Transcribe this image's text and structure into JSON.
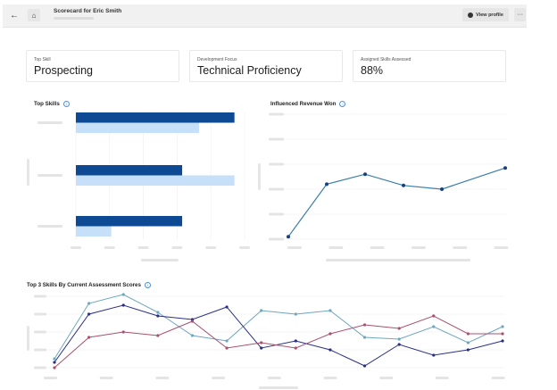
{
  "header": {
    "back_icon": "arrow-left-icon",
    "home_icon": "home-icon",
    "title": "Scorecard for Eric Smith",
    "view_profile_label": "View profile",
    "view_profile_icon": "user-circle-icon",
    "more_label": "···"
  },
  "cards": [
    {
      "label": "Top Skill",
      "value": "Prospecting"
    },
    {
      "label": "Development Focus",
      "value": "Technical Proficiency"
    },
    {
      "label": "Assigned Skills Assessed",
      "value": "88%"
    }
  ],
  "info_icon": "i",
  "colors": {
    "dark_bar": "#0e4a94",
    "light_bar": "#c7e0fa",
    "revenue_line": "#3a7fa6",
    "series": [
      "#6ea6c0",
      "#2a2f86",
      "#a8506e"
    ]
  },
  "chart_data": [
    {
      "type": "bar",
      "orientation": "horizontal",
      "title": "Top Skills",
      "xlim": [
        0,
        5
      ],
      "grid": true,
      "groups": [
        {
          "values": [
            4.7,
            3.65
          ]
        },
        {
          "values": [
            3.15,
            4.7
          ]
        },
        {
          "values": [
            3.15,
            1.05
          ]
        }
      ]
    },
    {
      "type": "line",
      "title": "Influenced Revenue Won",
      "ylim": [
        0,
        5
      ],
      "grid": true,
      "x": [
        0,
        1,
        2,
        3,
        4,
        5.65
      ],
      "y": [
        0.1,
        2.2,
        2.6,
        2.15,
        2.0,
        2.85
      ]
    },
    {
      "type": "line",
      "title": "Top 3 Skills By Current Assessment Scores",
      "ylim": [
        0,
        4
      ],
      "grid": true,
      "x": [
        0,
        1,
        2,
        3,
        4,
        5,
        6,
        7,
        8,
        9,
        10,
        11,
        12,
        13
      ],
      "series": [
        {
          "values": [
            0.5,
            3.6,
            4.1,
            3.1,
            1.8,
            1.5,
            3.2,
            3.0,
            3.2,
            1.7,
            1.6,
            2.3,
            1.4,
            2.3
          ]
        },
        {
          "values": [
            0.3,
            3.0,
            3.5,
            2.9,
            2.7,
            3.4,
            1.1,
            1.5,
            1.0,
            0.1,
            1.3,
            0.7,
            1.0,
            1.5
          ]
        },
        {
          "values": [
            0.0,
            1.7,
            2.0,
            1.8,
            2.6,
            1.1,
            1.4,
            1.1,
            1.9,
            2.4,
            2.2,
            2.9,
            1.9,
            1.9
          ]
        }
      ]
    }
  ]
}
